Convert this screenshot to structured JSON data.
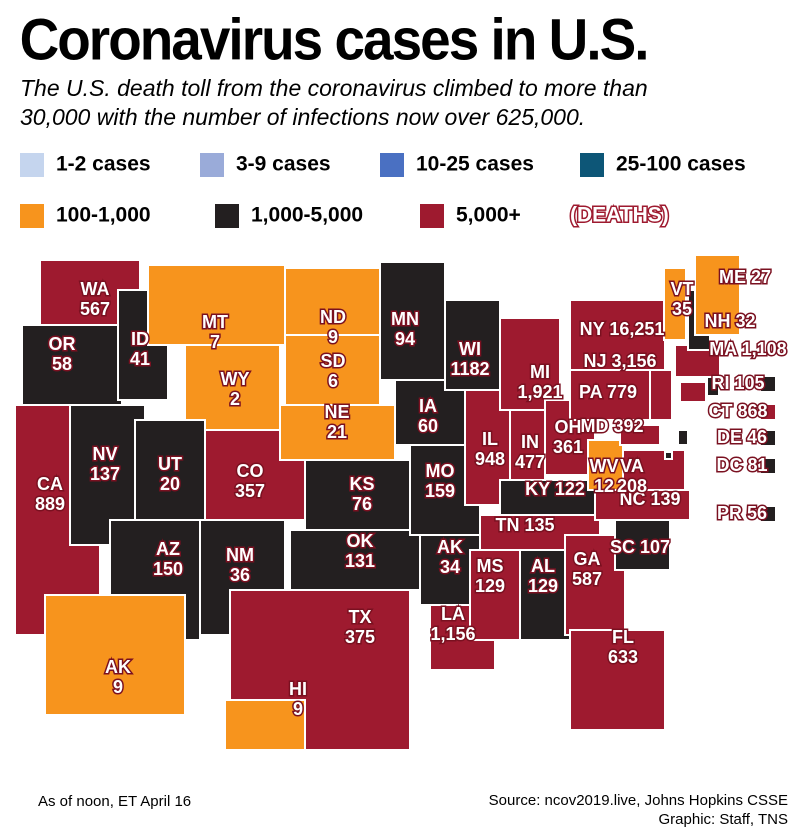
{
  "header": {
    "title": "Coronavirus cases in U.S.",
    "subtitle": [
      "The U.S. death toll from the coronavirus climbed to more than",
      "30,000 with the number of infections now over 625,000."
    ]
  },
  "legend": {
    "items": [
      {
        "label": "1-2 cases",
        "color": "#c5d5ee"
      },
      {
        "label": "3-9 cases",
        "color": "#9aabd9"
      },
      {
        "label": "10-25 cases",
        "color": "#4a70c2"
      },
      {
        "label": "25-100 cases",
        "color": "#0d5677"
      },
      {
        "label": "100-1,000",
        "color": "#f7941d"
      },
      {
        "label": "1,000-5,000",
        "color": "#231f20"
      },
      {
        "label": "5,000+",
        "color": "#9e1a2f"
      }
    ],
    "deaths_note": "(DEATHS)"
  },
  "states": [
    {
      "abbr": "WA",
      "deaths": "567",
      "category": 6
    },
    {
      "abbr": "OR",
      "deaths": "58",
      "category": 5
    },
    {
      "abbr": "CA",
      "deaths": "889",
      "category": 6
    },
    {
      "abbr": "ID",
      "deaths": "41",
      "category": 5
    },
    {
      "abbr": "NV",
      "deaths": "137",
      "category": 5
    },
    {
      "abbr": "MT",
      "deaths": "7",
      "category": 4
    },
    {
      "abbr": "WY",
      "deaths": "2",
      "category": 4
    },
    {
      "abbr": "UT",
      "deaths": "20",
      "category": 5
    },
    {
      "abbr": "CO",
      "deaths": "357",
      "category": 6
    },
    {
      "abbr": "AZ",
      "deaths": "150",
      "category": 5
    },
    {
      "abbr": "NM",
      "deaths": "36",
      "category": 5
    },
    {
      "abbr": "ND",
      "deaths": "9",
      "category": 4
    },
    {
      "abbr": "SD",
      "deaths": "6",
      "category": 4
    },
    {
      "abbr": "NE",
      "deaths": "21",
      "category": 4
    },
    {
      "abbr": "KS",
      "deaths": "76",
      "category": 5
    },
    {
      "abbr": "OK",
      "deaths": "131",
      "category": 5
    },
    {
      "abbr": "TX",
      "deaths": "375",
      "category": 6
    },
    {
      "abbr": "MN",
      "deaths": "94",
      "category": 5
    },
    {
      "abbr": "IA",
      "deaths": "60",
      "category": 5
    },
    {
      "abbr": "MO",
      "deaths": "159",
      "category": 5
    },
    {
      "abbr": "AK",
      "deaths": "34",
      "category": 5
    },
    {
      "abbr": "LA",
      "deaths": "1,156",
      "category": 6
    },
    {
      "abbr": "WI",
      "deaths": "1182",
      "category": 5
    },
    {
      "abbr": "IL",
      "deaths": "948",
      "category": 6
    },
    {
      "abbr": "MI",
      "deaths": "1,921",
      "category": 6
    },
    {
      "abbr": "IN",
      "deaths": "477",
      "category": 6
    },
    {
      "abbr": "OH",
      "deaths": "361",
      "category": 6
    },
    {
      "abbr": "KY",
      "deaths": "122",
      "category": 5
    },
    {
      "abbr": "TN",
      "deaths": "135",
      "category": 6
    },
    {
      "abbr": "MS",
      "deaths": "129",
      "category": 6
    },
    {
      "abbr": "AL",
      "deaths": "129",
      "category": 5
    },
    {
      "abbr": "GA",
      "deaths": "587",
      "category": 6
    },
    {
      "abbr": "FL",
      "deaths": "633",
      "category": 6
    },
    {
      "abbr": "SC",
      "deaths": "107",
      "category": 5
    },
    {
      "abbr": "NC",
      "deaths": "139",
      "category": 6
    },
    {
      "abbr": "VA",
      "deaths": "208",
      "category": 6
    },
    {
      "abbr": "WV",
      "deaths": "12",
      "category": 4
    },
    {
      "abbr": "MD",
      "deaths": "392",
      "category": 6
    },
    {
      "abbr": "PA",
      "deaths": "779",
      "category": 6
    },
    {
      "abbr": "NY",
      "deaths": "16,251",
      "category": 6
    },
    {
      "abbr": "NJ",
      "deaths": "3,156",
      "category": 6
    },
    {
      "abbr": "CT",
      "deaths": "868",
      "category": 6
    },
    {
      "abbr": "RI",
      "deaths": "105",
      "category": 5
    },
    {
      "abbr": "MA",
      "deaths": "1,108",
      "category": 6
    },
    {
      "abbr": "VT",
      "deaths": "35",
      "category": 4
    },
    {
      "abbr": "NH",
      "deaths": "32",
      "category": 5
    },
    {
      "abbr": "ME",
      "deaths": "27",
      "category": 4
    },
    {
      "abbr": "DE",
      "deaths": "46",
      "category": 5
    },
    {
      "abbr": "DC",
      "deaths": "81",
      "category": 5
    },
    {
      "abbr": "PR",
      "deaths": "56",
      "category": 5
    },
    {
      "abbr": "AK",
      "deaths": "9",
      "category": 4
    },
    {
      "abbr": "HI",
      "deaths": "9",
      "category": 4
    }
  ],
  "footer": {
    "date_note": "As of noon, ET April 16",
    "source": "Source: ncov2019.live, Johns Hopkins CSSE",
    "credit": "Graphic: Staff, TNS"
  }
}
